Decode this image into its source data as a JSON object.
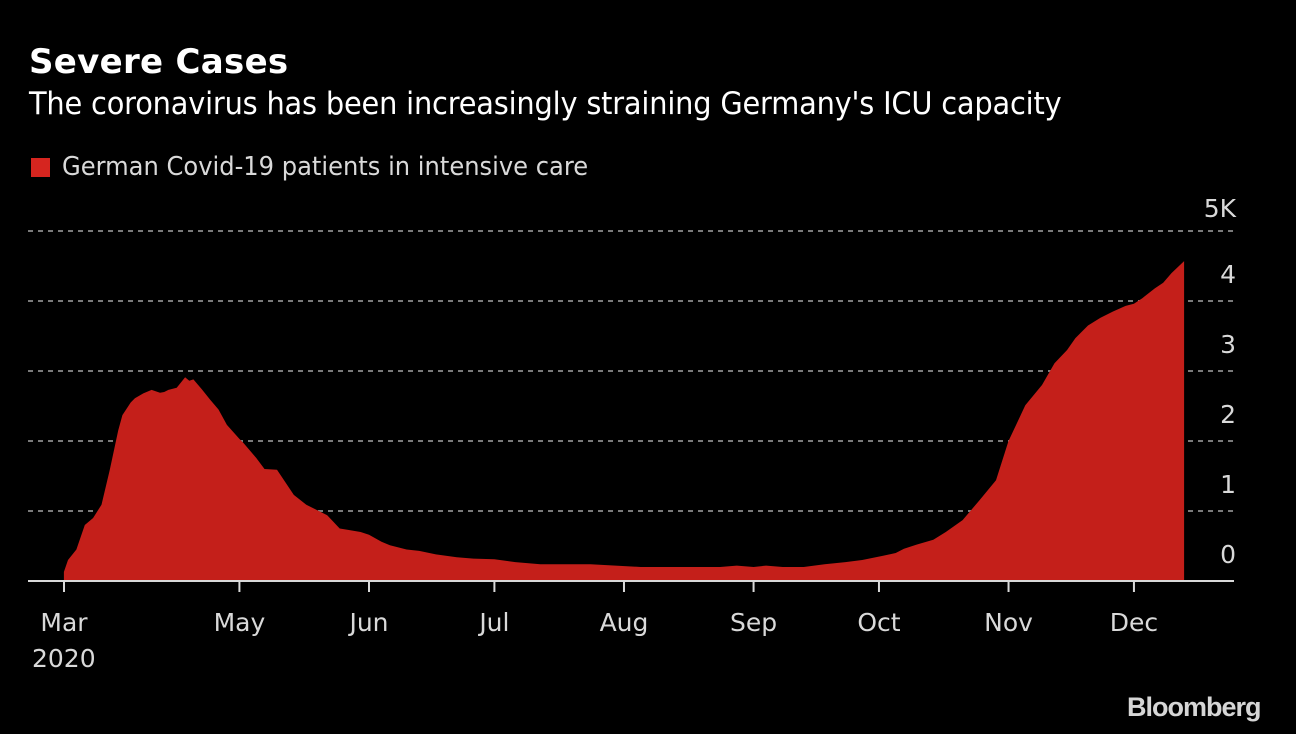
{
  "header": {
    "title": "Severe Cases",
    "subtitle": "The coronavirus has been increasingly straining Germany's ICU capacity"
  },
  "legend": {
    "label": "German Covid-19 patients in intensive care",
    "color": "#d6251f"
  },
  "brand": "Bloomberg",
  "colors": {
    "background": "#000000",
    "area": "#c41f1a",
    "grid": "#7a7a7a",
    "axis": "#d9d9d9",
    "text": "#d9d9d9"
  },
  "chart_data": {
    "type": "area",
    "title": "Severe Cases",
    "subtitle": "The coronavirus has been increasingly straining Germany's ICU capacity",
    "xlabel": "",
    "ylabel": "",
    "y_unit_label": "5K",
    "ylim": [
      0,
      5000
    ],
    "y_ticks": [
      {
        "value": 0,
        "label": "0"
      },
      {
        "value": 1000,
        "label": "1"
      },
      {
        "value": 2000,
        "label": "2"
      },
      {
        "value": 3000,
        "label": "3"
      },
      {
        "value": 4000,
        "label": "4"
      },
      {
        "value": 5000,
        "label": "5K"
      }
    ],
    "y_axis_side": "right",
    "grid": true,
    "grid_style": "dotted",
    "xlim": [
      "2020-03-12",
      "2020-12-27"
    ],
    "x_ticks": [
      {
        "date": "2020-03-20",
        "label": "Mar",
        "sublabel": "2020"
      },
      {
        "date": "2020-05-01",
        "label": "May"
      },
      {
        "date": "2020-06-01",
        "label": "Jun"
      },
      {
        "date": "2020-07-01",
        "label": "Jul"
      },
      {
        "date": "2020-08-01",
        "label": "Aug"
      },
      {
        "date": "2020-09-01",
        "label": "Sep"
      },
      {
        "date": "2020-10-01",
        "label": "Oct"
      },
      {
        "date": "2020-11-01",
        "label": "Nov"
      },
      {
        "date": "2020-12-01",
        "label": "Dec"
      }
    ],
    "legend_position": "top-left",
    "series": [
      {
        "name": "German Covid-19 patients in intensive care",
        "color": "#c41f1a",
        "points": [
          [
            "2020-03-20",
            130
          ],
          [
            "2020-03-21",
            300
          ],
          [
            "2020-03-23",
            450
          ],
          [
            "2020-03-25",
            800
          ],
          [
            "2020-03-27",
            900
          ],
          [
            "2020-03-29",
            1090
          ],
          [
            "2020-03-31",
            1590
          ],
          [
            "2020-04-02",
            2150
          ],
          [
            "2020-04-03",
            2370
          ],
          [
            "2020-04-05",
            2550
          ],
          [
            "2020-04-06",
            2610
          ],
          [
            "2020-04-08",
            2680
          ],
          [
            "2020-04-10",
            2730
          ],
          [
            "2020-04-12",
            2690
          ],
          [
            "2020-04-13",
            2700
          ],
          [
            "2020-04-14",
            2730
          ],
          [
            "2020-04-16",
            2760
          ],
          [
            "2020-04-18",
            2910
          ],
          [
            "2020-04-19",
            2860
          ],
          [
            "2020-04-20",
            2880
          ],
          [
            "2020-04-22",
            2740
          ],
          [
            "2020-04-24",
            2590
          ],
          [
            "2020-04-26",
            2450
          ],
          [
            "2020-04-28",
            2230
          ],
          [
            "2020-05-01",
            2030
          ],
          [
            "2020-05-02",
            1970
          ],
          [
            "2020-05-05",
            1760
          ],
          [
            "2020-05-07",
            1600
          ],
          [
            "2020-05-10",
            1590
          ],
          [
            "2020-05-14",
            1230
          ],
          [
            "2020-05-17",
            1090
          ],
          [
            "2020-05-20",
            1000
          ],
          [
            "2020-05-22",
            940
          ],
          [
            "2020-05-25",
            750
          ],
          [
            "2020-05-27",
            730
          ],
          [
            "2020-05-30",
            700
          ],
          [
            "2020-06-01",
            660
          ],
          [
            "2020-06-04",
            560
          ],
          [
            "2020-06-06",
            510
          ],
          [
            "2020-06-10",
            450
          ],
          [
            "2020-06-13",
            430
          ],
          [
            "2020-06-17",
            380
          ],
          [
            "2020-06-22",
            340
          ],
          [
            "2020-06-26",
            320
          ],
          [
            "2020-07-01",
            310
          ],
          [
            "2020-07-06",
            270
          ],
          [
            "2020-07-12",
            240
          ],
          [
            "2020-07-18",
            240
          ],
          [
            "2020-07-24",
            240
          ],
          [
            "2020-07-30",
            220
          ],
          [
            "2020-08-05",
            200
          ],
          [
            "2020-08-15",
            200
          ],
          [
            "2020-08-24",
            200
          ],
          [
            "2020-08-28",
            220
          ],
          [
            "2020-09-01",
            200
          ],
          [
            "2020-09-04",
            220
          ],
          [
            "2020-09-08",
            200
          ],
          [
            "2020-09-13",
            200
          ],
          [
            "2020-09-18",
            240
          ],
          [
            "2020-09-23",
            270
          ],
          [
            "2020-09-27",
            300
          ],
          [
            "2020-10-02",
            360
          ],
          [
            "2020-10-05",
            400
          ],
          [
            "2020-10-07",
            460
          ],
          [
            "2020-10-10",
            520
          ],
          [
            "2020-10-14",
            590
          ],
          [
            "2020-10-17",
            700
          ],
          [
            "2020-10-21",
            870
          ],
          [
            "2020-10-25",
            1150
          ],
          [
            "2020-10-29",
            1440
          ],
          [
            "2020-11-01",
            2000
          ],
          [
            "2020-11-05",
            2510
          ],
          [
            "2020-11-09",
            2800
          ],
          [
            "2020-11-12",
            3110
          ],
          [
            "2020-11-15",
            3300
          ],
          [
            "2020-11-17",
            3470
          ],
          [
            "2020-11-20",
            3650
          ],
          [
            "2020-11-23",
            3760
          ],
          [
            "2020-11-26",
            3850
          ],
          [
            "2020-11-29",
            3930
          ],
          [
            "2020-12-01",
            3960
          ],
          [
            "2020-12-03",
            4040
          ],
          [
            "2020-12-06",
            4180
          ],
          [
            "2020-12-08",
            4260
          ],
          [
            "2020-12-10",
            4400
          ],
          [
            "2020-12-13",
            4570
          ]
        ]
      }
    ]
  }
}
